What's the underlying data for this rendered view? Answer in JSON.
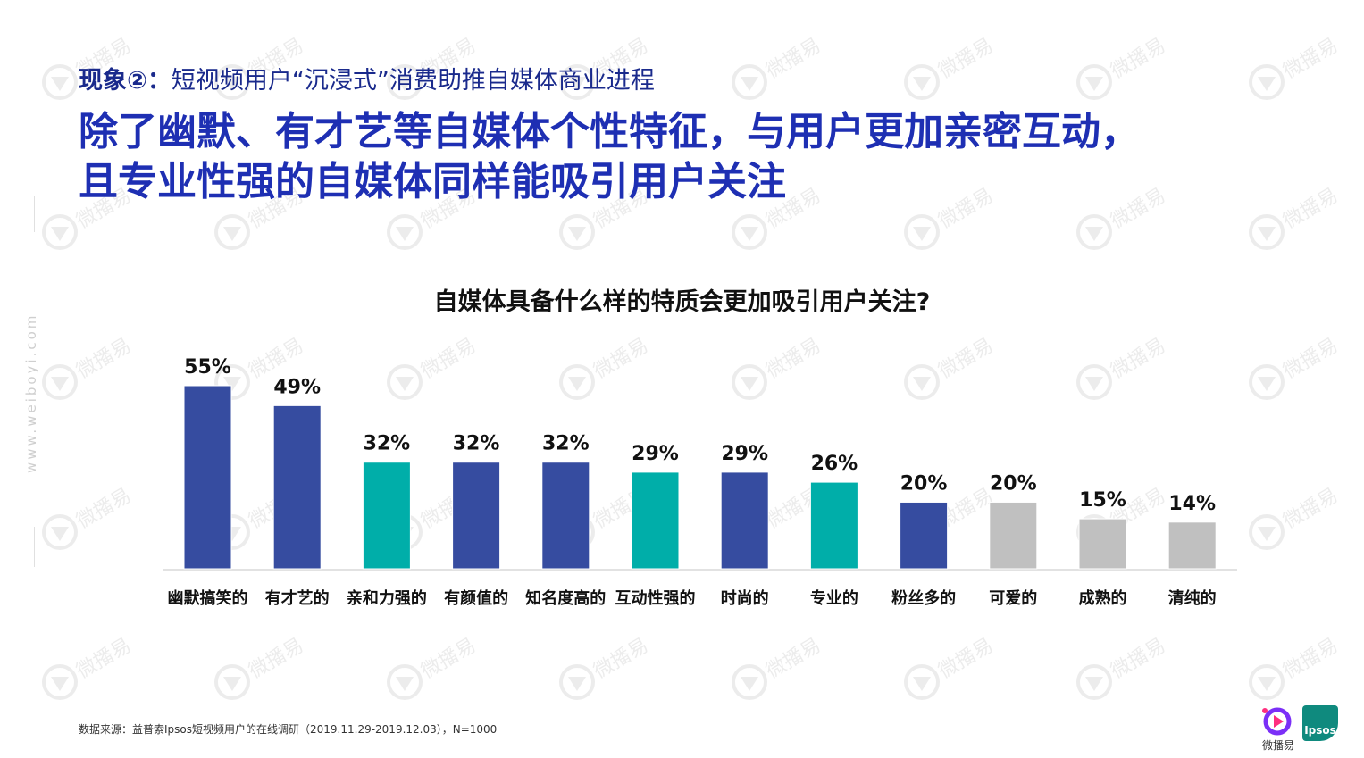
{
  "header": {
    "kicker_label": "现象②：",
    "kicker_text": "短视频用户“沉浸式”消费助推自媒体商业进程",
    "headline_line1": "除了幽默、有才艺等自媒体个性特征，与用户更加亲密互动，",
    "headline_line2": "且专业性强的自媒体同样能吸引用户关注"
  },
  "watermark": {
    "text": "微播易",
    "side_url": "www.weiboyi.com"
  },
  "chart_data": {
    "type": "bar",
    "title": "自媒体具备什么样的特质会更加吸引用户关注?",
    "categories": [
      "幽默搞笑的",
      "有才艺的",
      "亲和力强的",
      "有颜值的",
      "知名度高的",
      "互动性强的",
      "时尚的",
      "专业的",
      "粉丝多的",
      "可爱的",
      "成熟的",
      "清纯的"
    ],
    "values": [
      55,
      49,
      32,
      32,
      32,
      29,
      29,
      26,
      20,
      20,
      15,
      14
    ],
    "value_labels": [
      "55%",
      "49%",
      "32%",
      "32%",
      "32%",
      "29%",
      "29%",
      "26%",
      "20%",
      "20%",
      "15%",
      "14%"
    ],
    "colors": [
      "#364ca0",
      "#364ca0",
      "#00aea9",
      "#364ca0",
      "#364ca0",
      "#00aea9",
      "#364ca0",
      "#00aea9",
      "#364ca0",
      "#c0c0c0",
      "#c0c0c0",
      "#c0c0c0"
    ],
    "ylim": [
      0,
      55
    ],
    "xlabel": "",
    "ylabel": "",
    "grid": false
  },
  "footer": {
    "source": "数据来源：益普索Ipsos短视频用户的在线调研（2019.11.29-2019.12.03），N=1000",
    "logo_weibo_text": "微播易",
    "logo_ipsos_text": "Ipsos"
  }
}
